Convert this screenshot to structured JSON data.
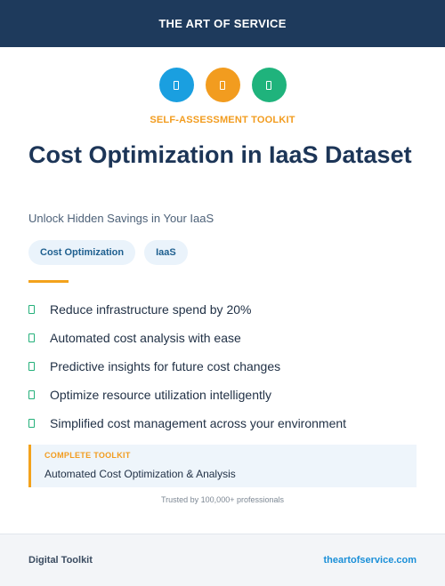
{
  "header": {
    "brand": "THE ART OF SERVICE"
  },
  "icons": [
    {
      "name": "document-icon",
      "color": "#1a9fe0"
    },
    {
      "name": "document-icon",
      "color": "#f29c1f"
    },
    {
      "name": "document-icon",
      "color": "#1fb37c"
    }
  ],
  "kicker": {
    "text": "SELF-ASSESSMENT TOOLKIT",
    "color": "#f29c1f"
  },
  "title": "Cost Optimization in IaaS Dataset",
  "subtitle": "Unlock Hidden Savings in Your IaaS",
  "tags": [
    "Cost Optimization",
    "IaaS"
  ],
  "benefits": [
    "Reduce infrastructure spend by 20%",
    "Automated cost analysis with ease",
    "Predictive insights for future cost changes",
    "Optimize resource utilization intelligently",
    "Simplified cost management across your environment"
  ],
  "callout": {
    "label": "COMPLETE TOOLKIT",
    "label_color": "#f29c1f",
    "text": "Automated Cost Optimization & Analysis"
  },
  "trusted": "Trusted by 100,000+ professionals",
  "footer": {
    "left": "Digital Toolkit",
    "right": "theartofservice.com"
  }
}
